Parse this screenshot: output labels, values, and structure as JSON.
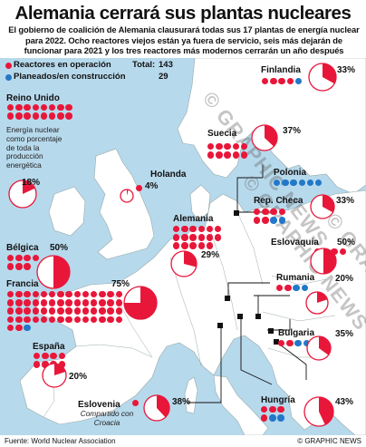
{
  "header": {
    "title": "Alemania cerrará sus plantas nucleares",
    "subtitle": "El gobierno de coalición de Alemania clausurará todas sus 17 plantas de energía nuclear para 2022. Ocho reactores viejos están ya fuera de servicio, seis más dejarán de funcionar para 2021 y los tres reactores más modernos cerrarán un año después"
  },
  "legend": {
    "operating_label": "Reactores en operación",
    "planned_label": "Planeados/en construcción",
    "total_label": "Total:",
    "total_operating": "143",
    "total_planned": "29"
  },
  "note": "Energía nuclear como porcentaje de toda la producción energética",
  "colors": {
    "operating": "#e8173a",
    "planned": "#2278c8",
    "sea": "#b7d9ec",
    "land": "#ffffff"
  },
  "countries": [
    {
      "name": "Finlandia",
      "operating": 4,
      "planned": 1,
      "percent": "33%",
      "share": 0.33
    },
    {
      "name": "Reino Unido",
      "operating": 16,
      "planned": 0,
      "percent": "18%",
      "share": 0.18
    },
    {
      "name": "Suecia",
      "operating": 10,
      "planned": 0,
      "percent": "37%",
      "share": 0.37
    },
    {
      "name": "Holanda",
      "operating": 1,
      "planned": 0,
      "percent": "4%",
      "share": 0.04
    },
    {
      "name": "Polonia",
      "operating": 0,
      "planned": 6,
      "percent": "",
      "share": 0
    },
    {
      "name": "Rep. Checa",
      "operating": 6,
      "planned": 2,
      "percent": "33%",
      "share": 0.33
    },
    {
      "name": "Alemania",
      "operating": 17,
      "planned": 0,
      "percent": "29%",
      "share": 0.29
    },
    {
      "name": "Bélgica",
      "operating": 7,
      "planned": 0,
      "percent": "50%",
      "share": 0.5
    },
    {
      "name": "Eslovaquia",
      "operating": 4,
      "planned": 2,
      "percent": "50%",
      "share": 0.5
    },
    {
      "name": "Francia",
      "operating": 58,
      "planned": 1,
      "percent": "75%",
      "share": 0.75
    },
    {
      "name": "Rumania",
      "operating": 2,
      "planned": 2,
      "percent": "20%",
      "share": 0.2
    },
    {
      "name": "España",
      "operating": 8,
      "planned": 0,
      "percent": "20%",
      "share": 0.2
    },
    {
      "name": "Bulgaria",
      "operating": 2,
      "planned": 2,
      "percent": "35%",
      "share": 0.35
    },
    {
      "name": "Eslovenia",
      "operating": 1,
      "planned": 0,
      "percent": "38%",
      "share": 0.38
    },
    {
      "name": "Hungría",
      "operating": 4,
      "planned": 2,
      "percent": "43%",
      "share": 0.43
    }
  ],
  "eslovenia_note": "Compartido con Croacia",
  "footer": {
    "source": "Fuente: World Nuclear Association",
    "credit": "© GRAPHIC NEWS"
  },
  "watermark": "© GRAPHIC NEWS"
}
